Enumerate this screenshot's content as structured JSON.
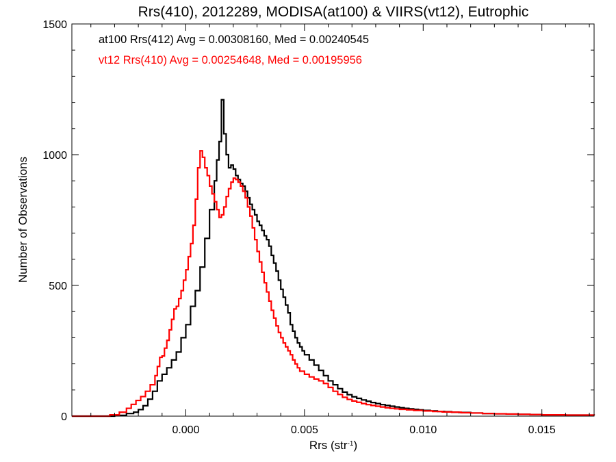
{
  "chart_data": {
    "type": "line",
    "title": "Rrs(410), 2012289, MODISA(at100) & VIIRS(vt12), Eutrophic",
    "xlabel": "Rrs (str",
    "xlabel_sup": "-1",
    "xlabel_end": ")",
    "ylabel": "Number of Observations",
    "xlim": [
      -0.0048,
      0.0172
    ],
    "ylim": [
      0,
      1500
    ],
    "xticks": [
      0.0,
      0.005,
      0.01,
      0.015
    ],
    "xtick_labels": [
      "0.000",
      "0.005",
      "0.010",
      "0.015"
    ],
    "yticks": [
      0,
      500,
      1000,
      1500
    ],
    "ytick_labels": [
      "0",
      "500",
      "1000",
      "1500"
    ],
    "grid": false,
    "annotations": [
      {
        "text": "at100 Rrs(412) Avg = 0.00308160, Med = 0.00240545",
        "color": "#000000"
      },
      {
        "text": "vt12 Rrs(410) Avg = 0.00254648, Med = 0.00195956",
        "color": "#ff0000"
      }
    ],
    "series": [
      {
        "color": "#000000",
        "step": true,
        "points": [
          [
            -0.0048,
            0
          ],
          [
            -0.0035,
            0
          ],
          [
            -0.003,
            3
          ],
          [
            -0.0025,
            10
          ],
          [
            -0.0022,
            15
          ],
          [
            -0.002,
            25
          ],
          [
            -0.0018,
            40
          ],
          [
            -0.0016,
            65
          ],
          [
            -0.0014,
            95
          ],
          [
            -0.0012,
            135
          ],
          [
            -0.001,
            160
          ],
          [
            -0.0008,
            185
          ],
          [
            -0.0006,
            215
          ],
          [
            -0.0004,
            245
          ],
          [
            -0.0002,
            300
          ],
          [
            0.0,
            350
          ],
          [
            0.0002,
            420
          ],
          [
            0.0004,
            480
          ],
          [
            0.0006,
            570
          ],
          [
            0.0008,
            680
          ],
          [
            0.001,
            790
          ],
          [
            0.0012,
            900
          ],
          [
            0.0013,
            980
          ],
          [
            0.0014,
            1050
          ],
          [
            0.0015,
            1210
          ],
          [
            0.0016,
            1080
          ],
          [
            0.0017,
            1000
          ],
          [
            0.0018,
            950
          ],
          [
            0.0019,
            960
          ],
          [
            0.002,
            945
          ],
          [
            0.0021,
            920
          ],
          [
            0.0022,
            905
          ],
          [
            0.0023,
            890
          ],
          [
            0.0024,
            880
          ],
          [
            0.0025,
            860
          ],
          [
            0.0026,
            835
          ],
          [
            0.0027,
            810
          ],
          [
            0.0028,
            790
          ],
          [
            0.0029,
            770
          ],
          [
            0.003,
            745
          ],
          [
            0.0031,
            730
          ],
          [
            0.0032,
            710
          ],
          [
            0.0033,
            690
          ],
          [
            0.0034,
            675
          ],
          [
            0.0035,
            650
          ],
          [
            0.0036,
            615
          ],
          [
            0.0037,
            585
          ],
          [
            0.0038,
            555
          ],
          [
            0.0039,
            520
          ],
          [
            0.004,
            485
          ],
          [
            0.0041,
            455
          ],
          [
            0.0042,
            425
          ],
          [
            0.0043,
            395
          ],
          [
            0.0044,
            350
          ],
          [
            0.0045,
            325
          ],
          [
            0.0046,
            300
          ],
          [
            0.0047,
            280
          ],
          [
            0.0048,
            265
          ],
          [
            0.0049,
            250
          ],
          [
            0.005,
            235
          ],
          [
            0.0052,
            215
          ],
          [
            0.0054,
            195
          ],
          [
            0.0056,
            175
          ],
          [
            0.0058,
            155
          ],
          [
            0.006,
            135
          ],
          [
            0.0062,
            120
          ],
          [
            0.0064,
            105
          ],
          [
            0.0066,
            92
          ],
          [
            0.0068,
            82
          ],
          [
            0.007,
            74
          ],
          [
            0.0072,
            68
          ],
          [
            0.0074,
            62
          ],
          [
            0.0076,
            57
          ],
          [
            0.0078,
            52
          ],
          [
            0.008,
            48
          ],
          [
            0.0082,
            44
          ],
          [
            0.0084,
            41
          ],
          [
            0.0086,
            38
          ],
          [
            0.0088,
            35
          ],
          [
            0.009,
            32
          ],
          [
            0.0092,
            30
          ],
          [
            0.0094,
            28
          ],
          [
            0.0096,
            26
          ],
          [
            0.0098,
            24
          ],
          [
            0.01,
            22
          ],
          [
            0.0103,
            20
          ],
          [
            0.0106,
            18
          ],
          [
            0.0109,
            17
          ],
          [
            0.0112,
            15
          ],
          [
            0.0115,
            14
          ],
          [
            0.012,
            12
          ],
          [
            0.0125,
            10
          ],
          [
            0.013,
            9
          ],
          [
            0.0135,
            8
          ],
          [
            0.014,
            7
          ],
          [
            0.0145,
            6
          ],
          [
            0.015,
            5
          ],
          [
            0.0155,
            5
          ],
          [
            0.016,
            4
          ],
          [
            0.0165,
            4
          ],
          [
            0.0172,
            3
          ]
        ]
      },
      {
        "color": "#ff0000",
        "step": true,
        "points": [
          [
            -0.0048,
            0
          ],
          [
            -0.0036,
            0
          ],
          [
            -0.0032,
            5
          ],
          [
            -0.0028,
            15
          ],
          [
            -0.0025,
            30
          ],
          [
            -0.0023,
            45
          ],
          [
            -0.0021,
            60
          ],
          [
            -0.0019,
            75
          ],
          [
            -0.0017,
            95
          ],
          [
            -0.0015,
            120
          ],
          [
            -0.0013,
            155
          ],
          [
            -0.0012,
            190
          ],
          [
            -0.0011,
            225
          ],
          [
            -0.001,
            230
          ],
          [
            -0.0009,
            260
          ],
          [
            -0.0008,
            290
          ],
          [
            -0.0007,
            330
          ],
          [
            -0.0006,
            370
          ],
          [
            -0.0005,
            410
          ],
          [
            -0.0004,
            420
          ],
          [
            -0.0003,
            450
          ],
          [
            -0.0002,
            480
          ],
          [
            -0.0001,
            520
          ],
          [
            0.0,
            560
          ],
          [
            0.0001,
            610
          ],
          [
            0.0002,
            660
          ],
          [
            0.0003,
            730
          ],
          [
            0.0004,
            830
          ],
          [
            0.0005,
            950
          ],
          [
            0.0006,
            1015
          ],
          [
            0.0007,
            990
          ],
          [
            0.0008,
            950
          ],
          [
            0.0009,
            920
          ],
          [
            0.001,
            880
          ],
          [
            0.0011,
            850
          ],
          [
            0.0012,
            820
          ],
          [
            0.0013,
            790
          ],
          [
            0.0014,
            760
          ],
          [
            0.0015,
            770
          ],
          [
            0.0016,
            800
          ],
          [
            0.0017,
            840
          ],
          [
            0.0018,
            870
          ],
          [
            0.0019,
            895
          ],
          [
            0.002,
            910
          ],
          [
            0.0021,
            905
          ],
          [
            0.0022,
            895
          ],
          [
            0.0023,
            880
          ],
          [
            0.0024,
            860
          ],
          [
            0.0025,
            835
          ],
          [
            0.0026,
            800
          ],
          [
            0.0027,
            765
          ],
          [
            0.0028,
            720
          ],
          [
            0.0029,
            675
          ],
          [
            0.003,
            630
          ],
          [
            0.0031,
            590
          ],
          [
            0.0032,
            550
          ],
          [
            0.0033,
            510
          ],
          [
            0.0034,
            475
          ],
          [
            0.0035,
            440
          ],
          [
            0.0036,
            405
          ],
          [
            0.0037,
            375
          ],
          [
            0.0038,
            345
          ],
          [
            0.0039,
            320
          ],
          [
            0.004,
            300
          ],
          [
            0.0041,
            280
          ],
          [
            0.0042,
            265
          ],
          [
            0.0043,
            250
          ],
          [
            0.0044,
            235
          ],
          [
            0.0045,
            215
          ],
          [
            0.0046,
            200
          ],
          [
            0.0047,
            185
          ],
          [
            0.0048,
            172
          ],
          [
            0.005,
            160
          ],
          [
            0.0052,
            150
          ],
          [
            0.0054,
            142
          ],
          [
            0.0056,
            135
          ],
          [
            0.0058,
            125
          ],
          [
            0.006,
            110
          ],
          [
            0.0062,
            95
          ],
          [
            0.0064,
            83
          ],
          [
            0.0066,
            72
          ],
          [
            0.0068,
            64
          ],
          [
            0.007,
            58
          ],
          [
            0.0072,
            53
          ],
          [
            0.0074,
            48
          ],
          [
            0.0076,
            44
          ],
          [
            0.0078,
            41
          ],
          [
            0.008,
            38
          ],
          [
            0.0082,
            35
          ],
          [
            0.0084,
            32
          ],
          [
            0.0086,
            30
          ],
          [
            0.0088,
            28
          ],
          [
            0.009,
            26
          ],
          [
            0.0093,
            24
          ],
          [
            0.0096,
            22
          ],
          [
            0.01,
            20
          ],
          [
            0.0104,
            18
          ],
          [
            0.0108,
            16
          ],
          [
            0.0112,
            15
          ],
          [
            0.0116,
            13
          ],
          [
            0.012,
            12
          ],
          [
            0.0125,
            10
          ],
          [
            0.013,
            9
          ],
          [
            0.0135,
            8
          ],
          [
            0.014,
            7
          ],
          [
            0.0145,
            6
          ],
          [
            0.015,
            5
          ],
          [
            0.0155,
            5
          ],
          [
            0.016,
            4
          ],
          [
            0.0165,
            4
          ],
          [
            0.0172,
            3
          ]
        ]
      }
    ]
  }
}
